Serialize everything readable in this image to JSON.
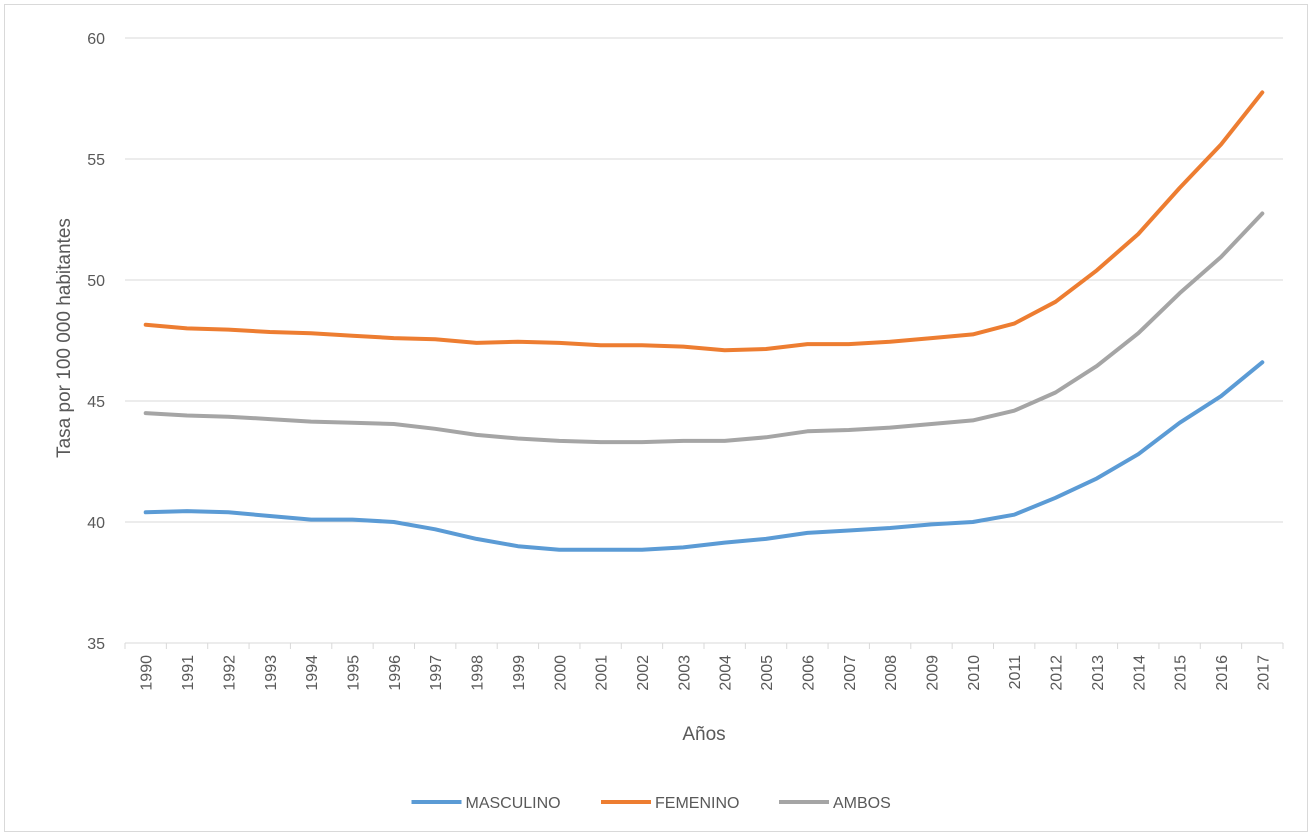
{
  "chart_data": {
    "type": "line",
    "title": "",
    "xlabel": "Años",
    "ylabel": "Tasa por 100 000 habitantes",
    "ylim": [
      35,
      60
    ],
    "yticks": [
      35,
      40,
      45,
      50,
      55,
      60
    ],
    "grid": true,
    "legend_position": "bottom",
    "categories": [
      "1990",
      "1991",
      "1992",
      "1993",
      "1994",
      "1995",
      "1996",
      "1997",
      "1998",
      "1999",
      "2000",
      "2001",
      "2002",
      "2003",
      "2004",
      "2005",
      "2006",
      "2007",
      "2008",
      "2009",
      "2010",
      "2011",
      "2012",
      "2013",
      "2014",
      "2015",
      "2016",
      "2017"
    ],
    "series": [
      {
        "name": "MASCULINO",
        "color": "#5b9bd5",
        "values": [
          40.4,
          40.45,
          40.4,
          40.25,
          40.1,
          40.1,
          40.0,
          39.7,
          39.3,
          39.0,
          38.85,
          38.85,
          38.85,
          38.95,
          39.15,
          39.3,
          39.55,
          39.65,
          39.75,
          39.9,
          40.0,
          40.3,
          41.0,
          41.8,
          42.8,
          44.1,
          45.2,
          46.6
        ]
      },
      {
        "name": "FEMENINO",
        "color": "#ed7d31",
        "values": [
          48.15,
          48.0,
          47.95,
          47.85,
          47.8,
          47.7,
          47.6,
          47.55,
          47.4,
          47.45,
          47.4,
          47.3,
          47.3,
          47.25,
          47.1,
          47.15,
          47.35,
          47.35,
          47.45,
          47.6,
          47.75,
          48.2,
          49.1,
          50.4,
          51.9,
          53.8,
          55.6,
          57.75
        ]
      },
      {
        "name": "AMBOS",
        "color": "#a5a5a5",
        "values": [
          44.5,
          44.4,
          44.35,
          44.25,
          44.15,
          44.1,
          44.05,
          43.85,
          43.6,
          43.45,
          43.35,
          43.3,
          43.3,
          43.35,
          43.35,
          43.5,
          43.75,
          43.8,
          43.9,
          44.05,
          44.2,
          44.6,
          45.35,
          46.45,
          47.8,
          49.45,
          50.95,
          52.75
        ]
      }
    ]
  }
}
